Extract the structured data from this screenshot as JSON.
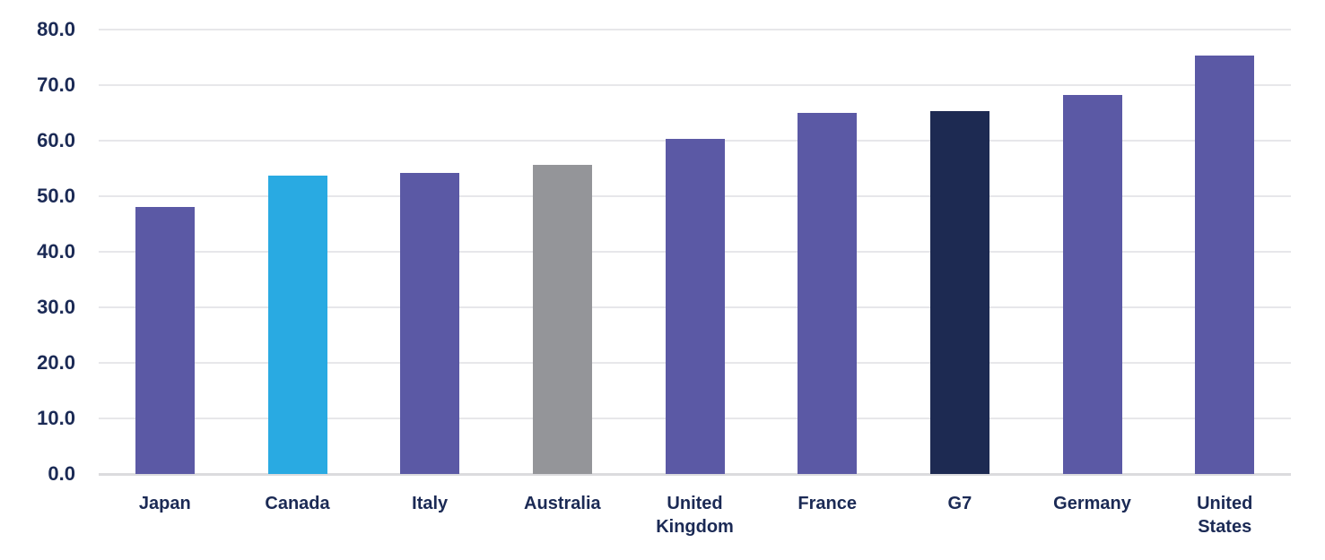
{
  "chart_data": {
    "type": "bar",
    "title": "",
    "xlabel": "",
    "ylabel": "",
    "categories": [
      "Japan",
      "Canada",
      "Italy",
      "Australia",
      "United Kingdom",
      "France",
      "G7",
      "Germany",
      "United States"
    ],
    "values": [
      48.0,
      53.7,
      54.2,
      55.7,
      60.3,
      65.0,
      65.4,
      68.3,
      75.4
    ],
    "bar_colors": [
      "#5B59A5",
      "#29AAE2",
      "#5B59A5",
      "#949599",
      "#5B59A5",
      "#5B59A5",
      "#1D2A52",
      "#5B59A5",
      "#5B59A5"
    ],
    "ylim": [
      0,
      80
    ],
    "ytick_labels": [
      "80.0",
      "70.0",
      "60.0",
      "50.0",
      "40.0",
      "30.0",
      "20.0",
      "10.0",
      "0.0"
    ],
    "grid": "horizontal",
    "legend_position": "none",
    "colors": {
      "default_bar": "#5B59A5",
      "canada_highlight": "#29AAE2",
      "australia_highlight": "#949599",
      "g7_highlight": "#1D2A52",
      "axis_text": "#1B2A55",
      "gridline": "#E7E7EA",
      "baseline": "#DBDBDE",
      "background": "#FFFFFF"
    }
  }
}
